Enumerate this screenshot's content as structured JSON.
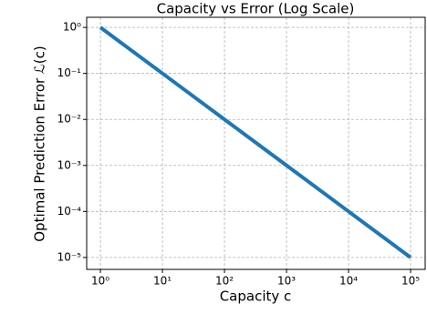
{
  "chart_data": {
    "type": "line",
    "title": "Capacity vs Error (Log Scale)",
    "x_label": "Capacity c",
    "y_label": "Optimal Prediction Error ℒ(c)",
    "x": [
      1,
      10,
      100,
      1000,
      10000,
      100000
    ],
    "series": [
      {
        "name": "Optimal Prediction Error",
        "color": "#1f77b4",
        "values": [
          1,
          0.1,
          0.01,
          0.001,
          0.0001,
          1e-05
        ]
      }
    ],
    "xscale": "log",
    "yscale": "log",
    "xlim": [
      0.6,
      172000
    ],
    "ylim": [
      5.5e-06,
      1.66
    ],
    "xticks": [
      {
        "value": 1,
        "label": "10⁰"
      },
      {
        "value": 10,
        "label": "10¹"
      },
      {
        "value": 100,
        "label": "10²"
      },
      {
        "value": 1000,
        "label": "10³"
      },
      {
        "value": 10000,
        "label": "10⁴"
      },
      {
        "value": 100000,
        "label": "10⁵"
      }
    ],
    "yticks": [
      {
        "value": 1,
        "label": "10⁰"
      },
      {
        "value": 0.1,
        "label": "10⁻¹"
      },
      {
        "value": 0.01,
        "label": "10⁻²"
      },
      {
        "value": 0.001,
        "label": "10⁻³"
      },
      {
        "value": 0.0001,
        "label": "10⁻⁴"
      },
      {
        "value": 1e-05,
        "label": "10⁻⁵"
      }
    ],
    "grid": true
  }
}
